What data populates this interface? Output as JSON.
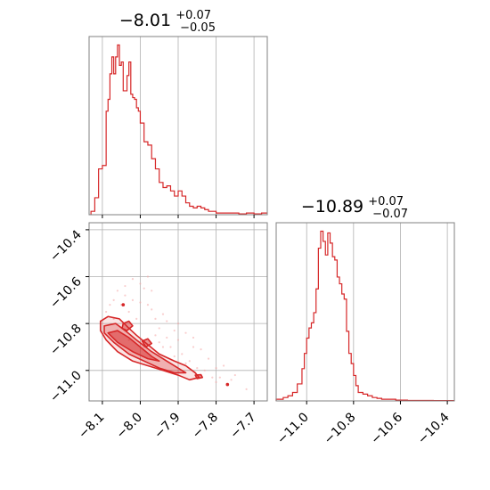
{
  "chart_data": [
    {
      "type": "histogram",
      "panel": "top-left",
      "title": {
        "main": "−8.01",
        "sup": "+0.07",
        "sub": "−0.05"
      },
      "xlim": [
        -8.135,
        -7.665
      ],
      "ylim": [
        0,
        1.05
      ],
      "x_ticks": [
        -8.1,
        -8.0,
        -7.9,
        -7.8,
        -7.7
      ],
      "show_tick_labels": false,
      "grid": true,
      "color": "#d62728",
      "bin_edges": [
        -8.13,
        -8.12,
        -8.11,
        -8.1,
        -8.09,
        -8.085,
        -8.08,
        -8.075,
        -8.07,
        -8.065,
        -8.06,
        -8.055,
        -8.05,
        -8.045,
        -8.04,
        -8.035,
        -8.03,
        -8.025,
        -8.02,
        -8.015,
        -8.01,
        -8.005,
        -8.0,
        -7.99,
        -7.98,
        -7.97,
        -7.96,
        -7.95,
        -7.94,
        -7.93,
        -7.92,
        -7.91,
        -7.9,
        -7.89,
        -7.88,
        -7.87,
        -7.86,
        -7.85,
        -7.84,
        -7.83,
        -7.82,
        -7.81,
        -7.8,
        -7.79,
        -7.78,
        -7.77,
        -7.76,
        -7.74,
        -7.72,
        -7.7,
        -7.68,
        -7.665
      ],
      "counts": [
        0.02,
        0.1,
        0.27,
        0.29,
        0.61,
        0.68,
        0.83,
        0.93,
        0.83,
        0.93,
        1.0,
        0.88,
        0.9,
        0.73,
        0.73,
        0.82,
        0.9,
        0.71,
        0.69,
        0.68,
        0.63,
        0.61,
        0.54,
        0.43,
        0.41,
        0.33,
        0.27,
        0.19,
        0.16,
        0.17,
        0.14,
        0.11,
        0.14,
        0.11,
        0.07,
        0.05,
        0.04,
        0.05,
        0.04,
        0.03,
        0.02,
        0.02,
        0.01,
        0.01,
        0.01,
        0.01,
        0.01,
        0.005,
        0.01,
        0.005,
        0.01
      ]
    },
    {
      "type": "contour_scatter",
      "panel": "bottom-left",
      "xlim": [
        -8.135,
        -7.665
      ],
      "ylim": [
        -11.13,
        -10.37
      ],
      "x_ticks": [
        -8.1,
        -8.0,
        -7.9,
        -7.8,
        -7.7
      ],
      "x_tick_labels": [
        "−8.1",
        "−8.0",
        "−7.9",
        "−7.8",
        "−7.7"
      ],
      "y_ticks": [
        -10.4,
        -10.6,
        -10.8,
        -11.0
      ],
      "y_tick_labels": [
        "−10.4",
        "−10.6",
        "−10.8",
        "−11.0"
      ],
      "grid": true,
      "color": "#d62728",
      "contours": [
        {
          "level": "outer",
          "points": [
            [
              -8.105,
              -10.79
            ],
            [
              -8.085,
              -10.77
            ],
            [
              -8.055,
              -10.78
            ],
            [
              -8.03,
              -10.82
            ],
            [
              -8.01,
              -10.85
            ],
            [
              -7.98,
              -10.89
            ],
            [
              -7.95,
              -10.93
            ],
            [
              -7.91,
              -10.96
            ],
            [
              -7.88,
              -10.98
            ],
            [
              -7.855,
              -11.01
            ],
            [
              -7.845,
              -11.03
            ],
            [
              -7.87,
              -11.04
            ],
            [
              -7.9,
              -11.02
            ],
            [
              -7.94,
              -11.0
            ],
            [
              -7.98,
              -10.98
            ],
            [
              -8.02,
              -10.96
            ],
            [
              -8.06,
              -10.92
            ],
            [
              -8.09,
              -10.87
            ],
            [
              -8.105,
              -10.83
            ]
          ]
        },
        {
          "level": "mid",
          "points": [
            [
              -8.095,
              -10.81
            ],
            [
              -8.065,
              -10.8
            ],
            [
              -8.04,
              -10.83
            ],
            [
              -8.01,
              -10.87
            ],
            [
              -7.97,
              -10.92
            ],
            [
              -7.93,
              -10.96
            ],
            [
              -7.9,
              -10.99
            ],
            [
              -7.88,
              -11.01
            ],
            [
              -7.91,
              -11.01
            ],
            [
              -7.95,
              -10.99
            ],
            [
              -7.99,
              -10.96
            ],
            [
              -8.03,
              -10.93
            ],
            [
              -8.07,
              -10.88
            ],
            [
              -8.095,
              -10.84
            ]
          ]
        },
        {
          "level": "inner",
          "points": [
            [
              -8.085,
              -10.84
            ],
            [
              -8.06,
              -10.83
            ],
            [
              -8.03,
              -10.86
            ],
            [
              -8.0,
              -10.9
            ],
            [
              -7.97,
              -10.94
            ],
            [
              -7.95,
              -10.96
            ],
            [
              -7.98,
              -10.95
            ],
            [
              -8.02,
              -10.92
            ],
            [
              -8.06,
              -10.88
            ]
          ]
        },
        {
          "level": "inner",
          "points": [
            [
              -8.045,
              -10.8
            ],
            [
              -8.03,
              -10.79
            ],
            [
              -8.02,
              -10.81
            ],
            [
              -8.035,
              -10.83
            ],
            [
              -8.048,
              -10.82
            ]
          ]
        },
        {
          "level": "inner",
          "points": [
            [
              -7.995,
              -10.875
            ],
            [
              -7.98,
              -10.865
            ],
            [
              -7.97,
              -10.885
            ],
            [
              -7.985,
              -10.9
            ]
          ]
        },
        {
          "level": "inner",
          "points": [
            [
              -7.855,
              -11.02
            ],
            [
              -7.84,
              -11.018
            ],
            [
              -7.836,
              -11.03
            ],
            [
              -7.85,
              -11.035
            ]
          ]
        }
      ],
      "scatter": [
        [
          -8.02,
          -10.61
        ],
        [
          -7.98,
          -10.72
        ],
        [
          -7.95,
          -10.82
        ],
        [
          -7.93,
          -10.86
        ],
        [
          -7.9,
          -10.87
        ],
        [
          -7.96,
          -10.78
        ],
        [
          -8.04,
          -10.68
        ],
        [
          -8.07,
          -10.7
        ],
        [
          -7.91,
          -10.83
        ],
        [
          -7.86,
          -10.9
        ],
        [
          -7.82,
          -10.95
        ],
        [
          -7.8,
          -10.99
        ],
        [
          -7.76,
          -11.04
        ],
        [
          -7.72,
          -11.08
        ],
        [
          -7.99,
          -10.65
        ],
        [
          -8.0,
          -10.63
        ],
        [
          -7.97,
          -10.66
        ],
        [
          -8.05,
          -10.72
        ],
        [
          -8.09,
          -10.75
        ],
        [
          -7.93,
          -10.79
        ],
        [
          -7.88,
          -10.84
        ],
        [
          -7.84,
          -10.91
        ],
        [
          -8.03,
          -10.75
        ],
        [
          -8.01,
          -10.78
        ],
        [
          -7.96,
          -10.85
        ],
        [
          -7.92,
          -10.9
        ],
        [
          -7.89,
          -10.93
        ],
        [
          -7.87,
          -10.96
        ],
        [
          -7.83,
          -11.0
        ],
        [
          -7.79,
          -11.03
        ],
        [
          -8.06,
          -10.66
        ],
        [
          -8.08,
          -10.72
        ],
        [
          -7.94,
          -10.76
        ],
        [
          -7.9,
          -10.8
        ],
        [
          -7.86,
          -10.86
        ],
        [
          -7.78,
          -10.98
        ],
        [
          -7.75,
          -11.02
        ],
        [
          -8.0,
          -10.71
        ],
        [
          -7.97,
          -10.74
        ],
        [
          -8.04,
          -10.64
        ],
        [
          -7.98,
          -10.6
        ],
        [
          -8.02,
          -10.7
        ],
        [
          -7.95,
          -10.88
        ],
        [
          -7.91,
          -10.94
        ],
        [
          -7.85,
          -10.99
        ],
        [
          -7.81,
          -11.03
        ],
        [
          -7.77,
          -11.06
        ],
        [
          -8.07,
          -10.78
        ],
        [
          -8.1,
          -10.8
        ],
        [
          -7.94,
          -10.9
        ],
        [
          -7.88,
          -10.97
        ],
        [
          -7.84,
          -11.02
        ],
        [
          -7.8,
          -11.05
        ],
        [
          -8.03,
          -10.87
        ],
        [
          -7.99,
          -10.9
        ]
      ],
      "highlighted_points": [
        [
          -8.045,
          -10.72
        ],
        [
          -7.77,
          -11.06
        ]
      ]
    },
    {
      "type": "histogram",
      "panel": "bottom-right",
      "title": {
        "main": "−10.89",
        "sup": "+0.07",
        "sub": "−0.07"
      },
      "xlim": [
        -11.13,
        -10.37
      ],
      "ylim": [
        0,
        1.05
      ],
      "x_ticks": [
        -11.0,
        -10.8,
        -10.6,
        -10.4
      ],
      "x_tick_labels": [
        "−11.0",
        "−10.8",
        "−10.6",
        "−10.4"
      ],
      "grid": true,
      "color": "#d62728",
      "bin_edges": [
        -11.13,
        -11.1,
        -11.08,
        -11.06,
        -11.04,
        -11.02,
        -11.01,
        -11.0,
        -10.99,
        -10.98,
        -10.97,
        -10.96,
        -10.95,
        -10.94,
        -10.93,
        -10.92,
        -10.91,
        -10.9,
        -10.89,
        -10.88,
        -10.87,
        -10.86,
        -10.85,
        -10.84,
        -10.83,
        -10.82,
        -10.81,
        -10.8,
        -10.79,
        -10.78,
        -10.76,
        -10.74,
        -10.72,
        -10.7,
        -10.68,
        -10.66,
        -10.64,
        -10.62,
        -10.6,
        -10.57,
        -10.54,
        -10.5,
        -10.46,
        -10.42,
        -10.37
      ],
      "counts": [
        0.01,
        0.02,
        0.03,
        0.05,
        0.1,
        0.19,
        0.28,
        0.37,
        0.43,
        0.46,
        0.52,
        0.66,
        0.9,
        1.0,
        0.94,
        0.86,
        0.99,
        0.93,
        0.85,
        0.83,
        0.73,
        0.69,
        0.63,
        0.6,
        0.41,
        0.28,
        0.22,
        0.15,
        0.09,
        0.05,
        0.04,
        0.03,
        0.02,
        0.015,
        0.01,
        0.01,
        0.01,
        0.005,
        0.005,
        0.003,
        0.003,
        0.003,
        0.002,
        0.002
      ]
    }
  ]
}
